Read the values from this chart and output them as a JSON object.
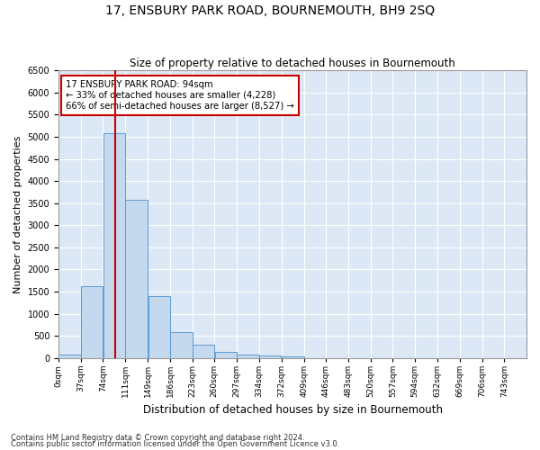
{
  "title": "17, ENSBURY PARK ROAD, BOURNEMOUTH, BH9 2SQ",
  "subtitle": "Size of property relative to detached houses in Bournemouth",
  "xlabel": "Distribution of detached houses by size in Bournemouth",
  "ylabel": "Number of detached properties",
  "footnote1": "Contains HM Land Registry data © Crown copyright and database right 2024.",
  "footnote2": "Contains public sector information licensed under the Open Government Licence v3.0.",
  "bin_labels": [
    "0sqm",
    "37sqm",
    "74sqm",
    "111sqm",
    "149sqm",
    "186sqm",
    "223sqm",
    "260sqm",
    "297sqm",
    "334sqm",
    "372sqm",
    "409sqm",
    "446sqm",
    "483sqm",
    "520sqm",
    "557sqm",
    "594sqm",
    "632sqm",
    "669sqm",
    "706sqm",
    "743sqm"
  ],
  "bin_edges": [
    0,
    37,
    74,
    111,
    149,
    186,
    223,
    260,
    297,
    334,
    372,
    409,
    446,
    483,
    520,
    557,
    594,
    632,
    669,
    706,
    743,
    780
  ],
  "bar_heights": [
    70,
    1620,
    5080,
    3570,
    1400,
    590,
    310,
    130,
    70,
    50,
    40,
    0,
    0,
    0,
    0,
    0,
    0,
    0,
    0,
    0,
    0
  ],
  "bar_color": "#c5d9ee",
  "bar_edge_color": "#5b9bd5",
  "vline_x": 94,
  "vline_color": "#cc0000",
  "ylim": [
    0,
    6500
  ],
  "yticks": [
    0,
    500,
    1000,
    1500,
    2000,
    2500,
    3000,
    3500,
    4000,
    4500,
    5000,
    5500,
    6000,
    6500
  ],
  "annotation_text": "17 ENSBURY PARK ROAD: 94sqm\n← 33% of detached houses are smaller (4,228)\n66% of semi-detached houses are larger (8,527) →",
  "annotation_box_color": "#cc0000",
  "bg_color": "#dce8f5",
  "fig_bg_color": "#ffffff",
  "grid_color": "#ffffff"
}
